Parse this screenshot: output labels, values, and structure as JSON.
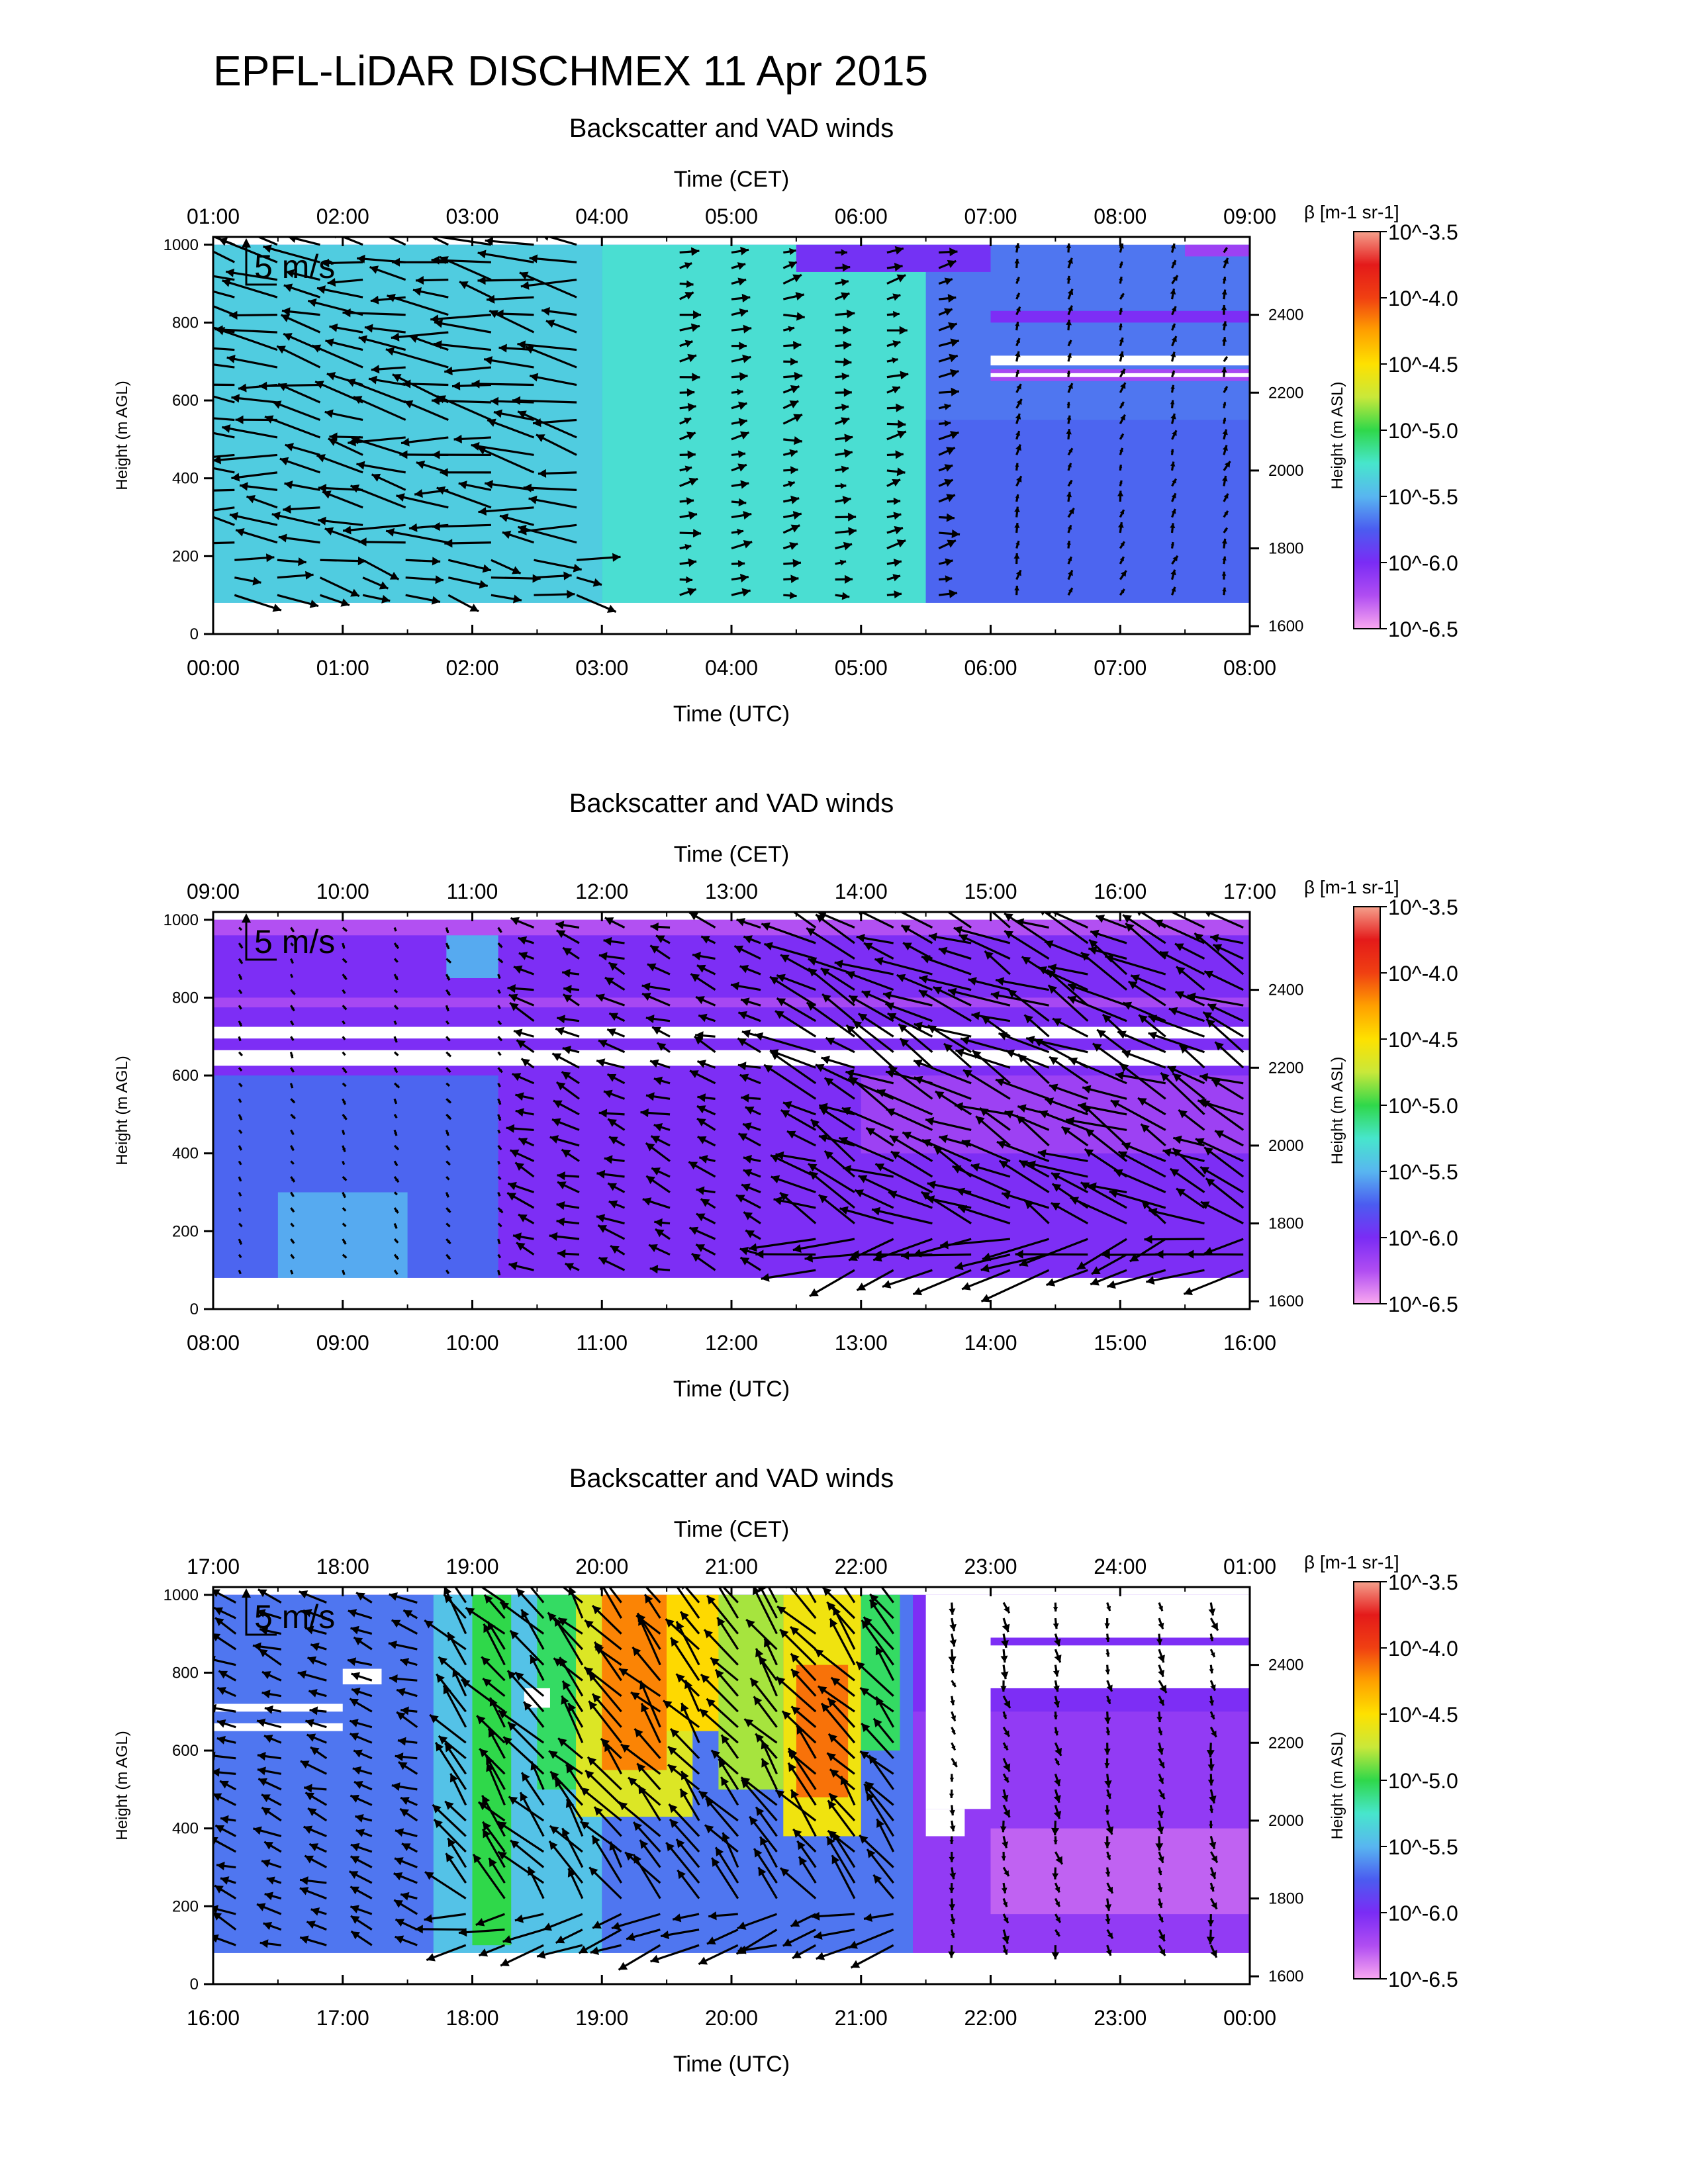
{
  "title": "EPFL-LiDAR DISCHMEX 11 Apr 2015",
  "colorbar_stops": [
    "#f9a8f0",
    "#b04df2",
    "#7a2cf5",
    "#4b5cf0",
    "#58b6f0",
    "#47e6cc",
    "#2fd84a",
    "#c9e83a",
    "#fee100",
    "#ffa000",
    "#f04012",
    "#e41a1a",
    "#f5a08c"
  ],
  "colors": {
    "arrow": "#000000",
    "clear_air": "#ffffff"
  },
  "chart_data": [
    {
      "type": "heatmap",
      "title": "Backscatter and VAD winds",
      "x_top_label": "Time (CET)",
      "x_bottom_label": "Time (UTC)",
      "ylabel_left": "Height (m AGL)",
      "ylabel_right": "Height (m ASL)",
      "colorbar_label": "β [m-1 sr-1]",
      "colorbar_ticks": [
        "10^-3.5",
        "10^-4.0",
        "10^-4.5",
        "10^-5.0",
        "10^-5.5",
        "10^-6.0",
        "10^-6.5"
      ],
      "x_top_ticks": [
        "01:00",
        "02:00",
        "03:00",
        "04:00",
        "05:00",
        "06:00",
        "07:00",
        "08:00",
        "09:00"
      ],
      "x_bottom_ticks": [
        "00:00",
        "01:00",
        "02:00",
        "03:00",
        "04:00",
        "05:00",
        "06:00",
        "07:00",
        "08:00"
      ],
      "ylim": [
        0,
        1020
      ],
      "y_left_ticks": [
        0,
        200,
        400,
        600,
        800,
        1000
      ],
      "y_right_ticks": [
        1600,
        1800,
        2000,
        2200,
        2400
      ],
      "xlim_hours_utc": [
        0,
        8
      ],
      "data_bottom_m": 80,
      "reference_arrow": "5 m/s",
      "log_beta_regions": [
        {
          "t": [
            0,
            8
          ],
          "h": [
            80,
            1000
          ],
          "log_beta": -5.75
        },
        {
          "t": [
            0,
            3
          ],
          "h": [
            80,
            1000
          ],
          "log_beta": -5.45
        },
        {
          "t": [
            3,
            5.5
          ],
          "h": [
            80,
            1000
          ],
          "log_beta": -5.35
        },
        {
          "t": [
            5.5,
            8
          ],
          "h": [
            80,
            550
          ],
          "log_beta": -5.8
        },
        {
          "t": [
            4.5,
            6
          ],
          "h": [
            930,
            1000
          ],
          "log_beta": -6.05
        },
        {
          "t": [
            6,
            8
          ],
          "h": [
            800,
            830
          ],
          "log_beta": -6.1
        },
        {
          "t": [
            6,
            8
          ],
          "h": [
            650,
            680
          ],
          "log_beta": -6.3
        },
        {
          "t": [
            7.5,
            8
          ],
          "h": [
            970,
            1000
          ],
          "log_beta": -6.25
        }
      ],
      "clear_regions": [
        {
          "t": [
            6,
            8
          ],
          "h": [
            690,
            715
          ]
        },
        {
          "t": [
            6,
            8
          ],
          "h": [
            660,
            670
          ]
        }
      ],
      "wind_regimes": [
        {
          "t": [
            0,
            3.1
          ],
          "u": -9,
          "v": 1.5,
          "interval_h": 0.33,
          "level_step_m": 45,
          "bottom_u": 7,
          "bottom_v": -1.5
        },
        {
          "t": [
            3.4,
            6
          ],
          "u": 3,
          "v": 0.5,
          "interval_h": 0.4,
          "level_step_m": 40
        },
        {
          "t": [
            6,
            8
          ],
          "u": 0.5,
          "v": 1.5,
          "interval_h": 0.4,
          "level_step_m": 40
        }
      ]
    },
    {
      "type": "heatmap",
      "title": "Backscatter and VAD winds",
      "x_top_label": "Time (CET)",
      "x_bottom_label": "Time (UTC)",
      "ylabel_left": "Height (m AGL)",
      "ylabel_right": "Height (m ASL)",
      "colorbar_label": "β [m-1 sr-1]",
      "colorbar_ticks": [
        "10^-3.5",
        "10^-4.0",
        "10^-4.5",
        "10^-5.0",
        "10^-5.5",
        "10^-6.0",
        "10^-6.5"
      ],
      "x_top_ticks": [
        "09:00",
        "10:00",
        "11:00",
        "12:00",
        "13:00",
        "14:00",
        "15:00",
        "16:00",
        "17:00"
      ],
      "x_bottom_ticks": [
        "08:00",
        "09:00",
        "10:00",
        "11:00",
        "12:00",
        "13:00",
        "14:00",
        "15:00",
        "16:00"
      ],
      "ylim": [
        0,
        1020
      ],
      "y_left_ticks": [
        0,
        200,
        400,
        600,
        800,
        1000
      ],
      "y_right_ticks": [
        1600,
        1800,
        2000,
        2200,
        2400
      ],
      "xlim_hours_utc": [
        8,
        16
      ],
      "data_bottom_m": 80,
      "reference_arrow": "5 m/s",
      "log_beta_regions": [
        {
          "t": [
            8,
            16
          ],
          "h": [
            80,
            1000
          ],
          "log_beta": -6.1
        },
        {
          "t": [
            8,
            10.2
          ],
          "h": [
            80,
            600
          ],
          "log_beta": -5.8
        },
        {
          "t": [
            8.5,
            9.5
          ],
          "h": [
            80,
            300
          ],
          "log_beta": -5.6
        },
        {
          "t": [
            9.8,
            10.2
          ],
          "h": [
            850,
            1000
          ],
          "log_beta": -5.6
        },
        {
          "t": [
            8,
            16
          ],
          "h": [
            960,
            1000
          ],
          "log_beta": -6.35
        },
        {
          "t": [
            8,
            16
          ],
          "h": [
            775,
            800
          ],
          "log_beta": -6.3
        },
        {
          "t": [
            13,
            16
          ],
          "h": [
            400,
            600
          ],
          "log_beta": -6.25
        }
      ],
      "clear_regions": [
        {
          "t": [
            8,
            16
          ],
          "h": [
            695,
            725
          ]
        },
        {
          "t": [
            8,
            16
          ],
          "h": [
            625,
            665
          ]
        }
      ],
      "wind_regimes": [
        {
          "t": [
            8,
            10.3
          ],
          "u": 0.5,
          "v": -0.8,
          "interval_h": 0.4,
          "level_step_m": 40
        },
        {
          "t": [
            10.3,
            12.5
          ],
          "u": -4,
          "v": 1.5,
          "interval_h": 0.35,
          "level_step_m": 40
        },
        {
          "t": [
            12.5,
            16
          ],
          "u": -8,
          "v": 4,
          "interval_h": 0.3,
          "level_step_m": 40,
          "bottom_u": -10,
          "bottom_v": -3
        }
      ]
    },
    {
      "type": "heatmap",
      "title": "Backscatter and VAD winds",
      "x_top_label": "Time (CET)",
      "x_bottom_label": "Time (UTC)",
      "ylabel_left": "Height (m AGL)",
      "ylabel_right": "Height (m ASL)",
      "colorbar_label": "β [m-1 sr-1]",
      "colorbar_ticks": [
        "10^-3.5",
        "10^-4.0",
        "10^-4.5",
        "10^-5.0",
        "10^-5.5",
        "10^-6.0",
        "10^-6.5"
      ],
      "x_top_ticks": [
        "17:00",
        "18:00",
        "19:00",
        "20:00",
        "21:00",
        "22:00",
        "23:00",
        "24:00",
        "01:00"
      ],
      "x_bottom_ticks": [
        "16:00",
        "17:00",
        "18:00",
        "19:00",
        "20:00",
        "21:00",
        "22:00",
        "23:00",
        "00:00"
      ],
      "ylim": [
        0,
        1020
      ],
      "y_left_ticks": [
        0,
        200,
        400,
        600,
        800,
        1000
      ],
      "y_right_ticks": [
        1600,
        1800,
        2000,
        2200,
        2400
      ],
      "xlim_hours_utc": [
        16,
        24
      ],
      "data_bottom_m": 80,
      "reference_arrow": "5 m/s",
      "log_beta_regions": [
        {
          "t": [
            16,
            24
          ],
          "h": [
            80,
            1000
          ],
          "log_beta": -6.1
        },
        {
          "t": [
            16,
            21.4
          ],
          "h": [
            80,
            1000
          ],
          "log_beta": -5.75
        },
        {
          "t": [
            17.7,
            19.0
          ],
          "h": [
            80,
            1000
          ],
          "log_beta": -5.5
        },
        {
          "t": [
            18.0,
            18.3
          ],
          "h": [
            100,
            1000
          ],
          "log_beta": -5.05
        },
        {
          "t": [
            18.5,
            19.0
          ],
          "h": [
            500,
            1000
          ],
          "log_beta": -5.1
        },
        {
          "t": [
            18.8,
            19.7
          ],
          "h": [
            430,
            1000
          ],
          "log_beta": -4.7
        },
        {
          "t": [
            19.0,
            19.5
          ],
          "h": [
            550,
            1000
          ],
          "log_beta": -4.2
        },
        {
          "t": [
            19.5,
            20.0
          ],
          "h": [
            650,
            1000
          ],
          "log_beta": -4.5
        },
        {
          "t": [
            19.9,
            20.4
          ],
          "h": [
            500,
            1000
          ],
          "log_beta": -4.85
        },
        {
          "t": [
            20.4,
            21.0
          ],
          "h": [
            380,
            1000
          ],
          "log_beta": -4.6
        },
        {
          "t": [
            20.5,
            20.9
          ],
          "h": [
            480,
            820
          ],
          "log_beta": -4.15
        },
        {
          "t": [
            21.0,
            21.3
          ],
          "h": [
            600,
            1000
          ],
          "log_beta": -5.1
        },
        {
          "t": [
            21.4,
            24
          ],
          "h": [
            80,
            700
          ],
          "log_beta": -6.2
        },
        {
          "t": [
            22,
            24
          ],
          "h": [
            180,
            400
          ],
          "log_beta": -6.4
        }
      ],
      "clear_regions": [
        {
          "t": [
            16,
            17.0
          ],
          "h": [
            700,
            720
          ]
        },
        {
          "t": [
            16,
            17.0
          ],
          "h": [
            650,
            670
          ]
        },
        {
          "t": [
            17.0,
            17.3
          ],
          "h": [
            770,
            810
          ]
        },
        {
          "t": [
            18.4,
            18.6
          ],
          "h": [
            710,
            760
          ]
        },
        {
          "t": [
            21.5,
            22.0
          ],
          "h": [
            450,
            1000
          ]
        },
        {
          "t": [
            22.0,
            24
          ],
          "h": [
            890,
            1000
          ]
        },
        {
          "t": [
            22.0,
            24
          ],
          "h": [
            760,
            870
          ]
        },
        {
          "t": [
            21.5,
            21.8
          ],
          "h": [
            380,
            450
          ]
        }
      ],
      "wind_regimes": [
        {
          "t": [
            16,
            17.8
          ],
          "u": -4,
          "v": 1.5,
          "interval_h": 0.35,
          "level_step_m": 40
        },
        {
          "t": [
            17.8,
            21.3
          ],
          "u": -5,
          "v": 6,
          "interval_h": 0.3,
          "level_step_m": 40,
          "bottom_u": -7,
          "bottom_v": -2
        },
        {
          "t": [
            21.5,
            24
          ],
          "u": 0.5,
          "v": -2,
          "interval_h": 0.4,
          "level_step_m": 40
        }
      ]
    }
  ]
}
